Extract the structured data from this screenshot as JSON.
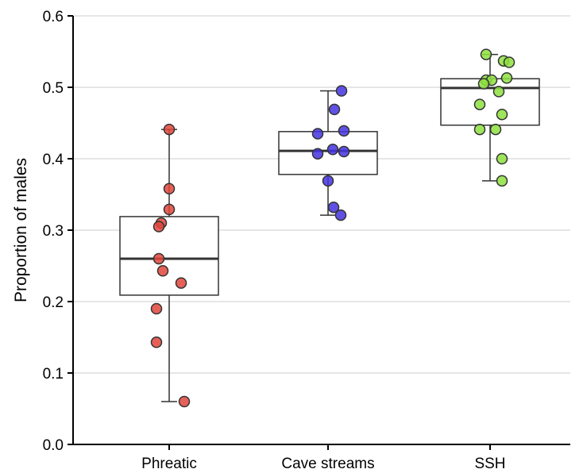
{
  "chart_data": {
    "type": "boxplot",
    "ylabel": "Proportion of males",
    "xlabel": "",
    "ylim": [
      0,
      0.6
    ],
    "yticks": [
      "0.0",
      "0.1",
      "0.2",
      "0.3",
      "0.4",
      "0.5",
      "0.6"
    ],
    "grid": "horizontal",
    "categories": [
      "Phreatic",
      "Cave streams",
      "SSH"
    ],
    "groups": [
      {
        "name": "Phreatic",
        "color": "#e0453b",
        "q1": 0.209,
        "median": 0.26,
        "q3": 0.319,
        "whisker_low": 0.06,
        "whisker_high": 0.441,
        "points": [
          {
            "offset": 0.0,
            "value": 0.441
          },
          {
            "offset": 0.0,
            "value": 0.358
          },
          {
            "offset": 0.0,
            "value": 0.329
          },
          {
            "offset": -0.1,
            "value": 0.31
          },
          {
            "offset": -0.13,
            "value": 0.305
          },
          {
            "offset": -0.13,
            "value": 0.26
          },
          {
            "offset": -0.08,
            "value": 0.243
          },
          {
            "offset": 0.15,
            "value": 0.226
          },
          {
            "offset": -0.16,
            "value": 0.19
          },
          {
            "offset": -0.16,
            "value": 0.143
          },
          {
            "offset": 0.19,
            "value": 0.06
          }
        ]
      },
      {
        "name": "Cave streams",
        "color": "#4433e0",
        "q1": 0.378,
        "median": 0.411,
        "q3": 0.438,
        "whisker_low": 0.321,
        "whisker_high": 0.495,
        "points": [
          {
            "offset": 0.17,
            "value": 0.495
          },
          {
            "offset": 0.08,
            "value": 0.469
          },
          {
            "offset": -0.13,
            "value": 0.435
          },
          {
            "offset": 0.2,
            "value": 0.439
          },
          {
            "offset": 0.06,
            "value": 0.413
          },
          {
            "offset": -0.13,
            "value": 0.407
          },
          {
            "offset": 0.2,
            "value": 0.41
          },
          {
            "offset": 0.0,
            "value": 0.369
          },
          {
            "offset": 0.07,
            "value": 0.332
          },
          {
            "offset": 0.16,
            "value": 0.321
          }
        ]
      },
      {
        "name": "SSH",
        "color": "#8ee040",
        "q1": 0.447,
        "median": 0.499,
        "q3": 0.512,
        "whisker_low": 0.369,
        "whisker_high": 0.546,
        "points": [
          {
            "offset": -0.05,
            "value": 0.546
          },
          {
            "offset": 0.17,
            "value": 0.537
          },
          {
            "offset": 0.24,
            "value": 0.535
          },
          {
            "offset": 0.21,
            "value": 0.513
          },
          {
            "offset": -0.05,
            "value": 0.51
          },
          {
            "offset": 0.02,
            "value": 0.51
          },
          {
            "offset": -0.08,
            "value": 0.505
          },
          {
            "offset": 0.11,
            "value": 0.494
          },
          {
            "offset": -0.13,
            "value": 0.476
          },
          {
            "offset": 0.15,
            "value": 0.462
          },
          {
            "offset": -0.13,
            "value": 0.441
          },
          {
            "offset": 0.07,
            "value": 0.441
          },
          {
            "offset": 0.15,
            "value": 0.4
          },
          {
            "offset": 0.15,
            "value": 0.369
          }
        ]
      }
    ]
  }
}
